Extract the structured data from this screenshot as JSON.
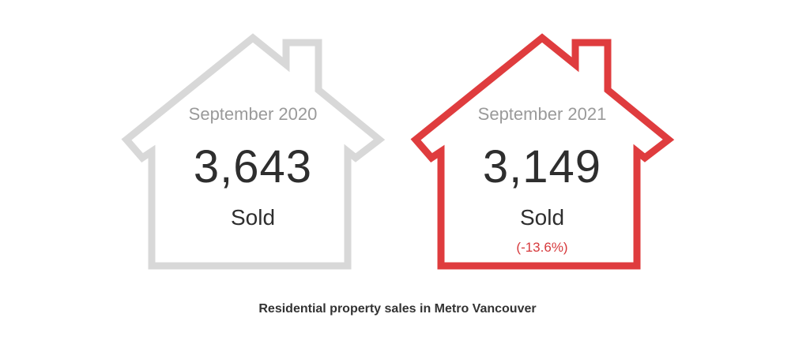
{
  "colors": {
    "inactive_outline": "#d8d8d8",
    "highlight_outline": "#df3c3e",
    "change_text": "#d6393c",
    "value_text": "#2e2e2e",
    "period_text": "#9a9a9a"
  },
  "houses": [
    {
      "period": "September 2020",
      "value": "3,643",
      "unit": "Sold",
      "change": ""
    },
    {
      "period": "September 2021",
      "value": "3,149",
      "unit": "Sold",
      "change": "(-13.6%)"
    }
  ],
  "caption": "Residential property sales in Metro Vancouver"
}
